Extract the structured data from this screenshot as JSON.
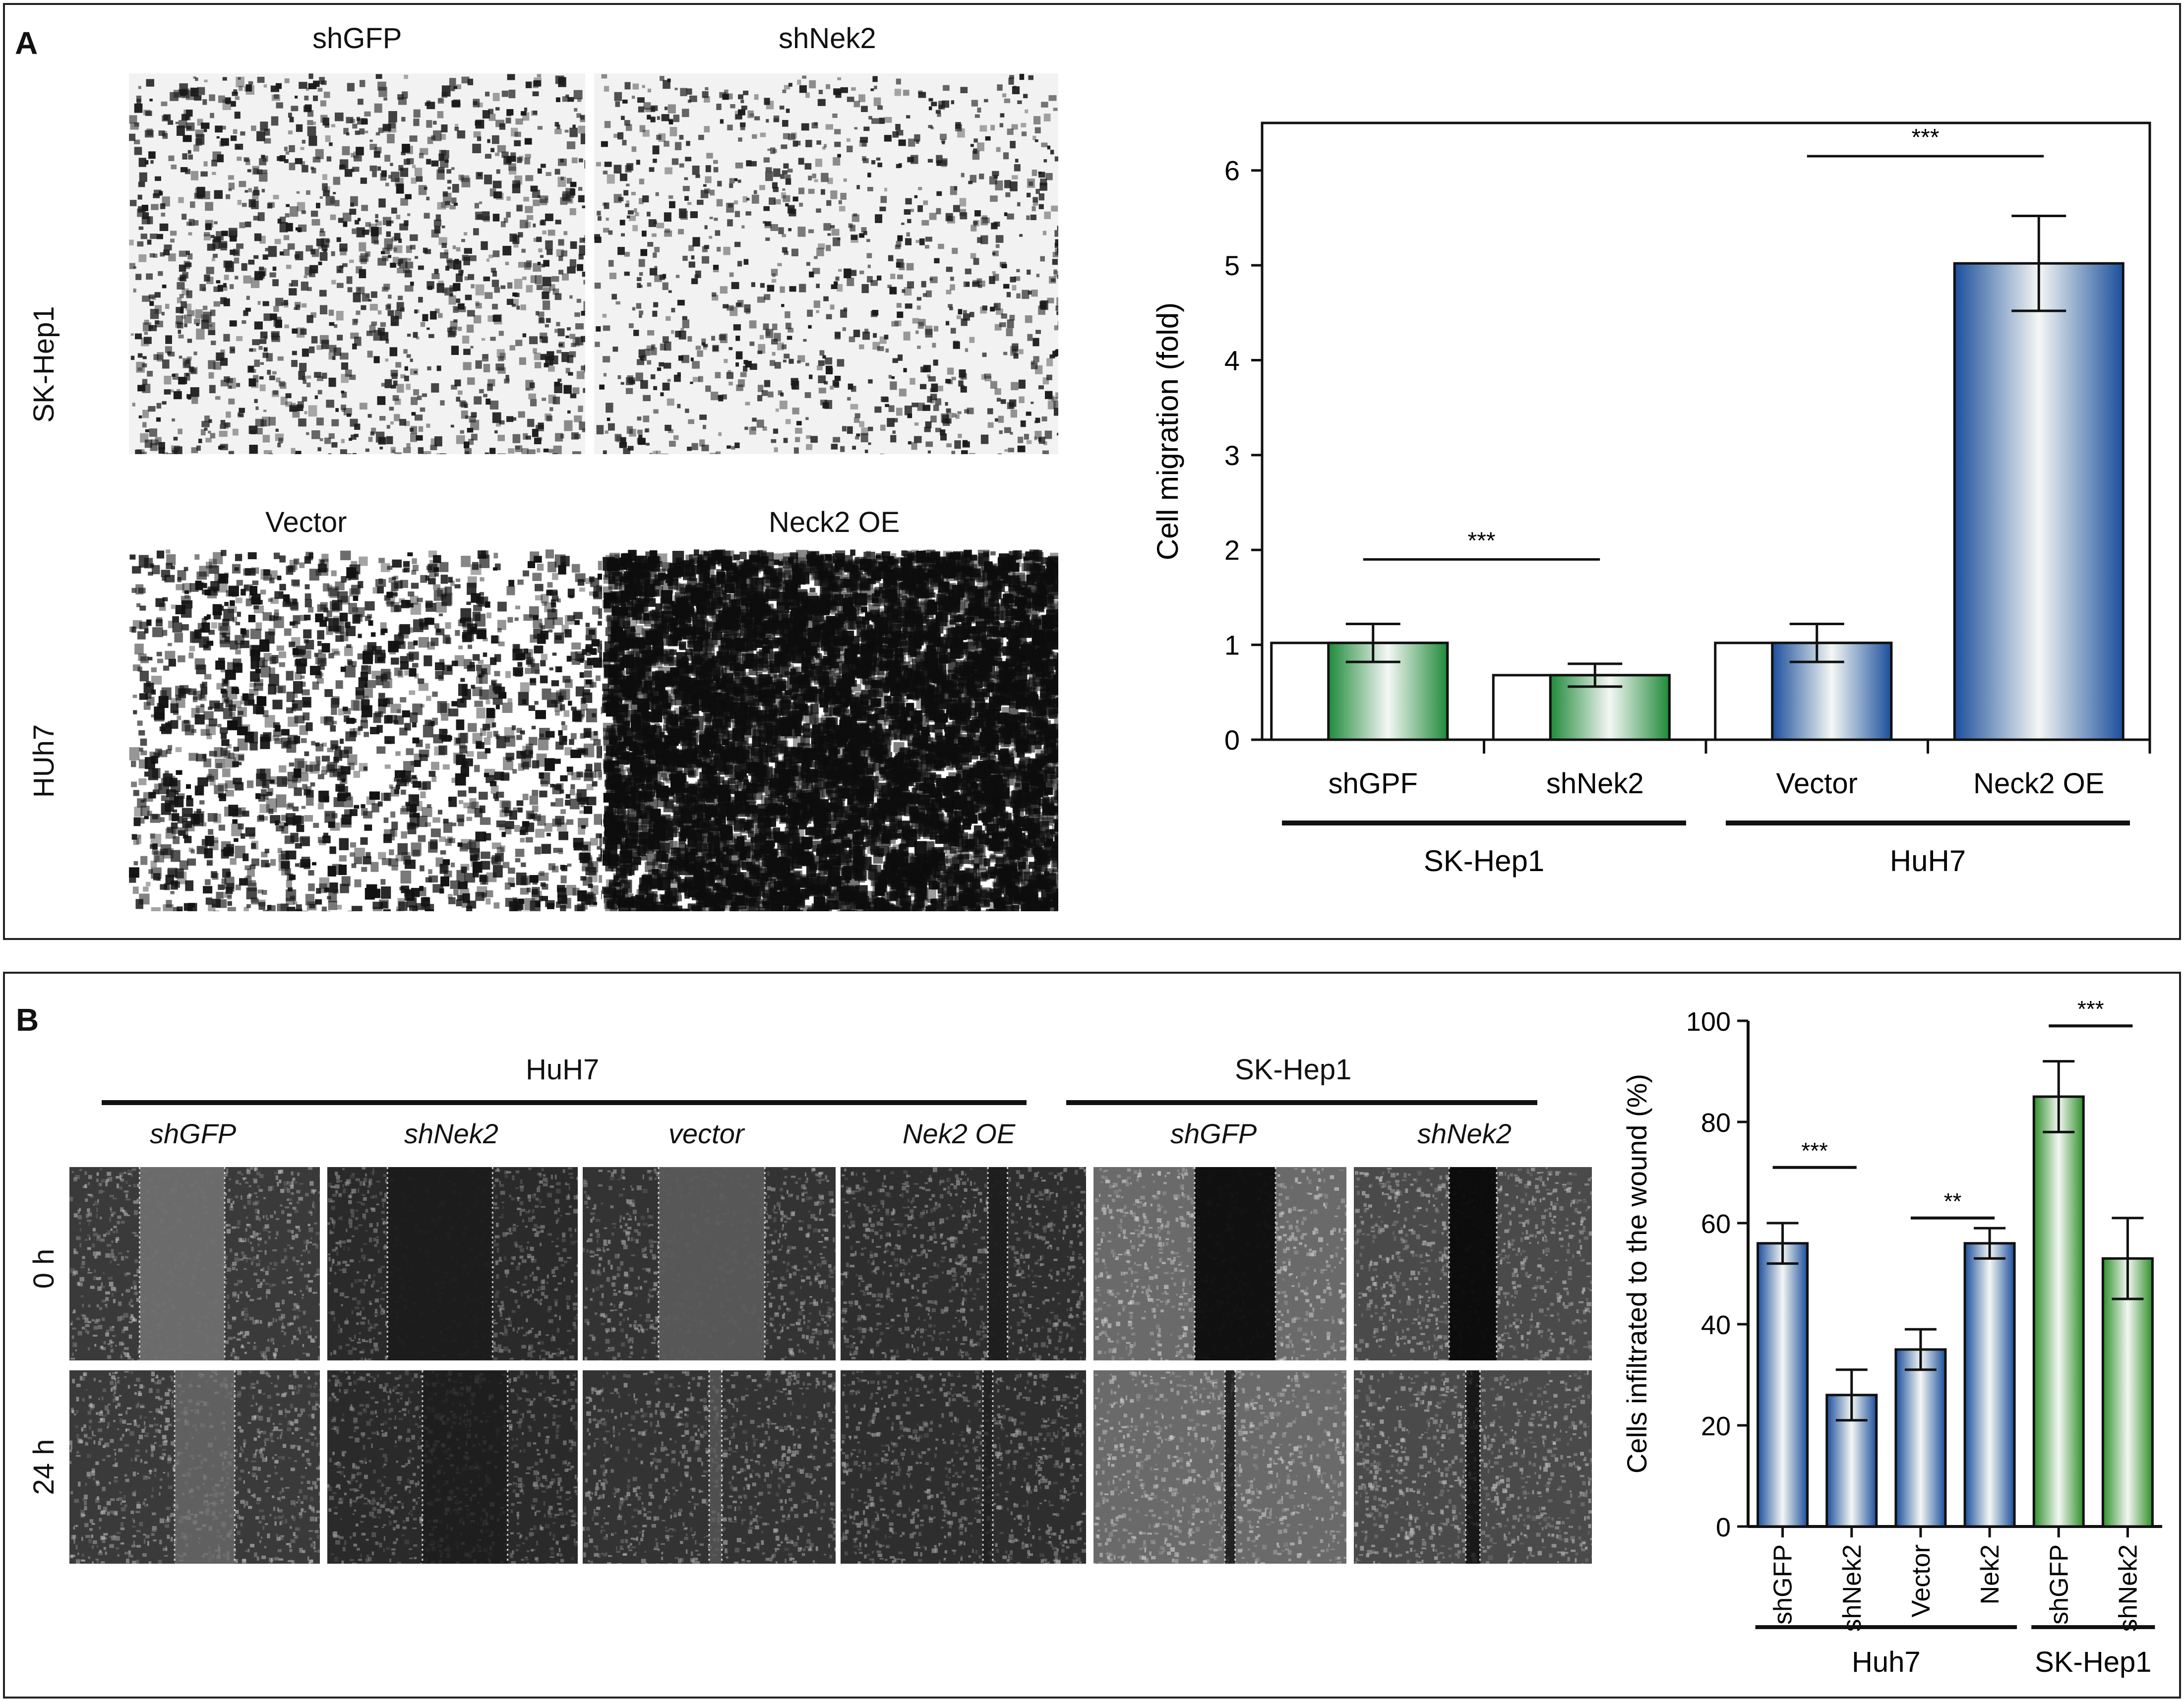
{
  "panelA": {
    "label": "A",
    "image_cols": [
      "shGFP",
      "shNek2"
    ],
    "image_cols_row2": [
      "Vector",
      "Neck2 OE"
    ],
    "image_rows": [
      "SK-Hep1",
      "HUh7"
    ]
  },
  "panelB": {
    "label": "B",
    "groups": [
      "HuH7",
      "SK-Hep1"
    ],
    "image_cols": [
      "shGFP",
      "shNek2",
      "vector",
      "Nek2 OE",
      "shGFP",
      "shNek2"
    ],
    "image_rows": [
      "0 h",
      "24 h"
    ]
  },
  "chart_data": [
    {
      "type": "bar",
      "title": "",
      "ylabel": "Cell migration (fold)",
      "xlabel": "",
      "ylim": [
        0,
        6.5
      ],
      "yticks": [
        "0",
        "1",
        "2",
        "3",
        "4",
        "5",
        "6"
      ],
      "categories": [
        "shGPF",
        "shNek2",
        "Vector",
        "Neck2 OE"
      ],
      "values": [
        1.02,
        0.68,
        1.02,
        5.02
      ],
      "errors": [
        0.2,
        0.12,
        0.2,
        0.5
      ],
      "groups": [
        {
          "name": "SK-Hep1",
          "categories": [
            "shGPF",
            "shNek2"
          ]
        },
        {
          "name": "HuH7",
          "categories": [
            "Vector",
            "Neck2 OE"
          ]
        }
      ],
      "significance": [
        {
          "between": [
            "shGPF",
            "shNek2"
          ],
          "label": "***"
        },
        {
          "between": [
            "Vector",
            "Neck2 OE"
          ],
          "label": "***"
        }
      ],
      "colors": {
        "green": "#1f8a3a",
        "blue": "#1c4f9c"
      }
    },
    {
      "type": "bar",
      "title": "",
      "ylabel": "Cells infiltrated to the wound (%)",
      "xlabel": "",
      "ylim": [
        0,
        100
      ],
      "yticks": [
        "0",
        "20",
        "40",
        "60",
        "80",
        "100"
      ],
      "categories": [
        "shGFP",
        "shNek2",
        "Vector",
        "Nek2",
        "shGFP",
        "shNek2"
      ],
      "values": [
        56,
        26,
        35,
        56,
        85,
        53
      ],
      "errors": [
        4,
        5,
        4,
        3,
        7,
        8
      ],
      "groups": [
        {
          "name": "Huh7",
          "categories": [
            "shGFP",
            "shNek2",
            "Vector",
            "Nek2"
          ]
        },
        {
          "name": "SK-Hep1",
          "categories": [
            "shGFP",
            "shNek2"
          ]
        }
      ],
      "significance": [
        {
          "between": [
            "shGFP",
            "shNek2"
          ],
          "label": "***"
        },
        {
          "between": [
            "Vector",
            "Nek2"
          ],
          "label": "**"
        },
        {
          "between": [
            "shGFP",
            "shNek2"
          ],
          "label": "***"
        }
      ],
      "colors": {
        "green": "#2f8f2a",
        "blue": "#1c4f9c"
      }
    }
  ]
}
